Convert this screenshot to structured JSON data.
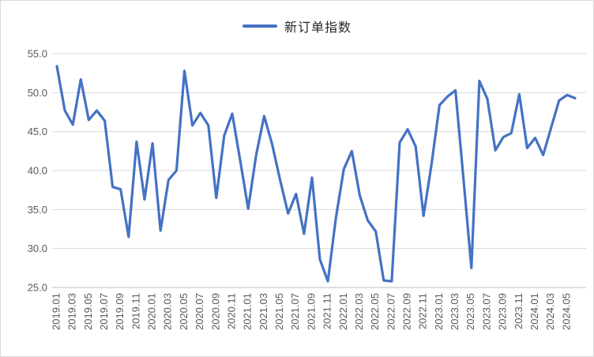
{
  "legend": {
    "label": "新订单指数"
  },
  "colors": {
    "line": "#4472C4",
    "grid": "#D9D9D9",
    "axis": "#BFBFBF",
    "tick_text": "#595959",
    "legend_text": "#262626",
    "background": "#FFFFFF"
  },
  "y_axis": {
    "tick_labels": [
      "55.0",
      "50.0",
      "45.0",
      "40.0",
      "35.0",
      "30.0",
      "25.0"
    ]
  },
  "chart_data": {
    "type": "line",
    "title": "",
    "legend_entries": [
      "新订单指数"
    ],
    "legend_position": "top-center",
    "grid": "horizontal",
    "x_label_rotation": -90,
    "xtick_every": 2,
    "ylim": [
      25,
      55
    ],
    "ytick_step": 5,
    "x": [
      "2019.01",
      "2019.02",
      "2019.03",
      "2019.04",
      "2019.05",
      "2019.06",
      "2019.07",
      "2019.08",
      "2019.09",
      "2019.10",
      "2019.11",
      "2019.12",
      "2020.01",
      "2020.02",
      "2020.03",
      "2020.04",
      "2020.05",
      "2020.06",
      "2020.07",
      "2020.08",
      "2020.09",
      "2020.10",
      "2020.11",
      "2020.12",
      "2021.01",
      "2021.02",
      "2021.03",
      "2021.04",
      "2021.05",
      "2021.06",
      "2021.07",
      "2021.08",
      "2021.09",
      "2021.10",
      "2021.11",
      "2021.12",
      "2022.01",
      "2022.02",
      "2022.03",
      "2022.04",
      "2022.05",
      "2022.06",
      "2022.07",
      "2022.08",
      "2022.09",
      "2022.10",
      "2022.11",
      "2022.12",
      "2023.01",
      "2023.02",
      "2023.03",
      "2023.04",
      "2023.05",
      "2023.06",
      "2023.07",
      "2023.08",
      "2023.09",
      "2023.10",
      "2023.11",
      "2023.12",
      "2024.01",
      "2024.02",
      "2024.03",
      "2024.04",
      "2024.05",
      "2024.06"
    ],
    "series": [
      {
        "name": "新订单指数",
        "values": [
          53.4,
          47.7,
          45.9,
          51.7,
          46.5,
          47.7,
          46.4,
          37.9,
          37.6,
          31.5,
          43.7,
          36.3,
          43.5,
          32.3,
          38.8,
          40.0,
          52.8,
          45.8,
          47.4,
          45.8,
          36.5,
          44.5,
          47.3,
          41.3,
          35.1,
          42.0,
          47.0,
          43.4,
          38.8,
          34.5,
          37.0,
          31.9,
          39.1,
          28.6,
          25.8,
          33.9,
          40.2,
          42.5,
          36.8,
          33.6,
          32.2,
          25.9,
          25.8,
          43.6,
          45.3,
          43.1,
          34.2,
          40.8,
          48.4,
          49.5,
          50.3,
          39.0,
          27.5,
          51.5,
          49.2,
          42.6,
          44.3,
          44.8,
          49.8,
          42.9,
          44.2,
          42.0,
          45.5,
          49.0,
          49.7,
          49.3
        ]
      }
    ]
  }
}
